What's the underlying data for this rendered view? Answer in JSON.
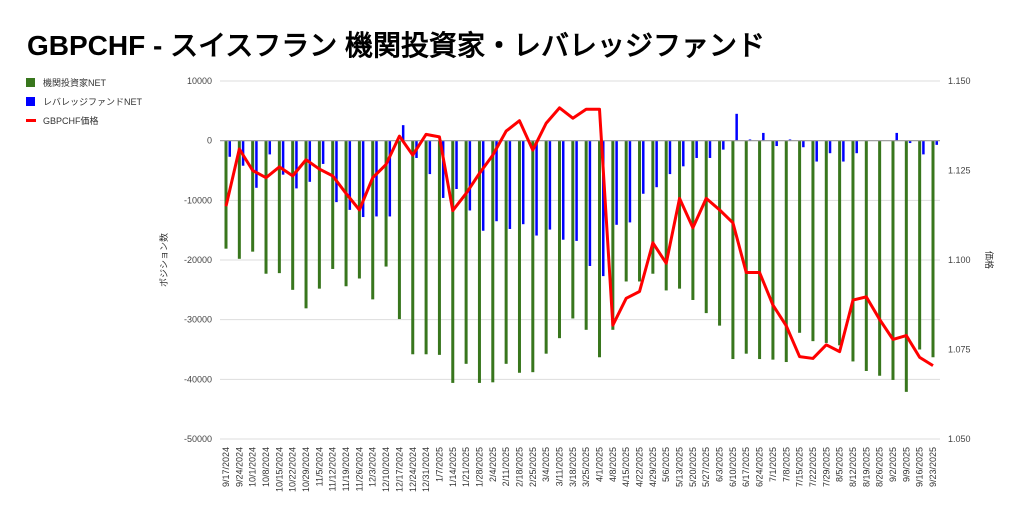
{
  "chart_data": {
    "type": "bar+line",
    "title": "GBPCHF - スイスフラン 機関投資家・レバレッジファンド",
    "ylabel": "ポジション数",
    "y2label": "価格",
    "ylim": [
      -50000,
      10000
    ],
    "y2lim": [
      1.05,
      1.15
    ],
    "yticks": [
      "10000",
      "0",
      "-10000",
      "-20000",
      "-30000",
      "-40000",
      "-50000"
    ],
    "y2ticks": [
      "1.150",
      "1.125",
      "1.100",
      "1.075",
      "1.050"
    ],
    "legend_position": "left",
    "grid": true,
    "categories": [
      "9/17/2024",
      "9/24/2024",
      "10/1/2024",
      "10/8/2024",
      "10/15/2024",
      "10/22/2024",
      "10/29/2024",
      "11/5/2024",
      "11/12/2024",
      "11/19/2024",
      "11/26/2024",
      "12/3/2024",
      "12/10/2024",
      "12/17/2024",
      "12/24/2024",
      "12/31/2024",
      "1/7/2025",
      "1/14/2025",
      "1/21/2025",
      "1/28/2025",
      "2/4/2025",
      "2/11/2025",
      "2/18/2025",
      "2/25/2025",
      "3/4/2025",
      "3/11/2025",
      "3/18/2025",
      "3/25/2025",
      "4/1/2025",
      "4/8/2025",
      "4/15/2025",
      "4/22/2025",
      "4/29/2025",
      "5/6/2025",
      "5/13/2025",
      "5/20/2025",
      "5/27/2025",
      "6/3/2025",
      "6/10/2025",
      "6/17/2025",
      "6/24/2025",
      "7/1/2025",
      "7/8/2025",
      "7/15/2025",
      "7/22/2025",
      "7/29/2025",
      "8/5/2025",
      "8/12/2025",
      "8/19/2025",
      "8/26/2025",
      "9/2/2025",
      "9/9/2025",
      "9/16/2025",
      "9/23/2025"
    ],
    "series": [
      {
        "name": "機関投資家NET",
        "type": "bar",
        "color": "#38761d",
        "axis": "left",
        "values": [
          -18100,
          -19800,
          -18600,
          -22300,
          -22200,
          -25000,
          -28100,
          -24800,
          -21500,
          -24400,
          -23100,
          -26600,
          -21100,
          -29900,
          -35800,
          -35800,
          -35900,
          -40600,
          -37400,
          -40600,
          -40500,
          -37400,
          -38900,
          -38800,
          -35700,
          -33100,
          -29800,
          -31700,
          -36300,
          -31700,
          -23600,
          -23600,
          -22300,
          -25100,
          -24800,
          -26700,
          -28900,
          -31000,
          -36600,
          -35700,
          -36600,
          -36700,
          -37100,
          -32200,
          -33600,
          -33900,
          -34300,
          -37000,
          -38600,
          -39400,
          -40100,
          -42100,
          -35000,
          -36300
        ]
      },
      {
        "name": "レバレッジファンドNET",
        "type": "bar",
        "color": "#0000ff",
        "axis": "left",
        "values": [
          -2700,
          -4200,
          -7900,
          -2300,
          -5700,
          -8000,
          -6900,
          -3900,
          -10300,
          -11600,
          -12800,
          -12700,
          -12700,
          2600,
          -2900,
          -5600,
          -9600,
          -8100,
          -11700,
          -15100,
          -13500,
          -14800,
          -14000,
          -15900,
          -14900,
          -16600,
          -16800,
          -21000,
          -22700,
          -14100,
          -13700,
          -8900,
          -7800,
          -5600,
          -4300,
          -2900,
          -2900,
          -1500,
          4500,
          200,
          1300,
          -900,
          200,
          -1100,
          -3500,
          -2100,
          -3500,
          -2100,
          0,
          0,
          1300,
          -400,
          -2300,
          -700
        ]
      },
      {
        "name": "GBPCHF価格",
        "type": "line",
        "color": "#ff0000",
        "axis": "right",
        "values": [
          1.115,
          1.131,
          1.125,
          1.123,
          1.126,
          1.1235,
          1.128,
          1.1254,
          1.1235,
          1.1186,
          1.114,
          1.123,
          1.1267,
          1.1346,
          1.1293,
          1.1351,
          1.1344,
          1.1138,
          1.1186,
          1.1242,
          1.1293,
          1.136,
          1.1389,
          1.1307,
          1.1382,
          1.1425,
          1.1396,
          1.1421,
          1.1421,
          1.0818,
          1.0893,
          1.0912,
          1.1048,
          1.0991,
          1.1172,
          1.109,
          1.1172,
          1.114,
          1.1104,
          1.0965,
          1.0965,
          1.0874,
          1.0816,
          1.073,
          1.0725,
          1.0763,
          1.0744,
          1.0888,
          1.0897,
          1.0834,
          1.0778,
          1.0789,
          1.0728,
          1.0705
        ]
      }
    ]
  }
}
